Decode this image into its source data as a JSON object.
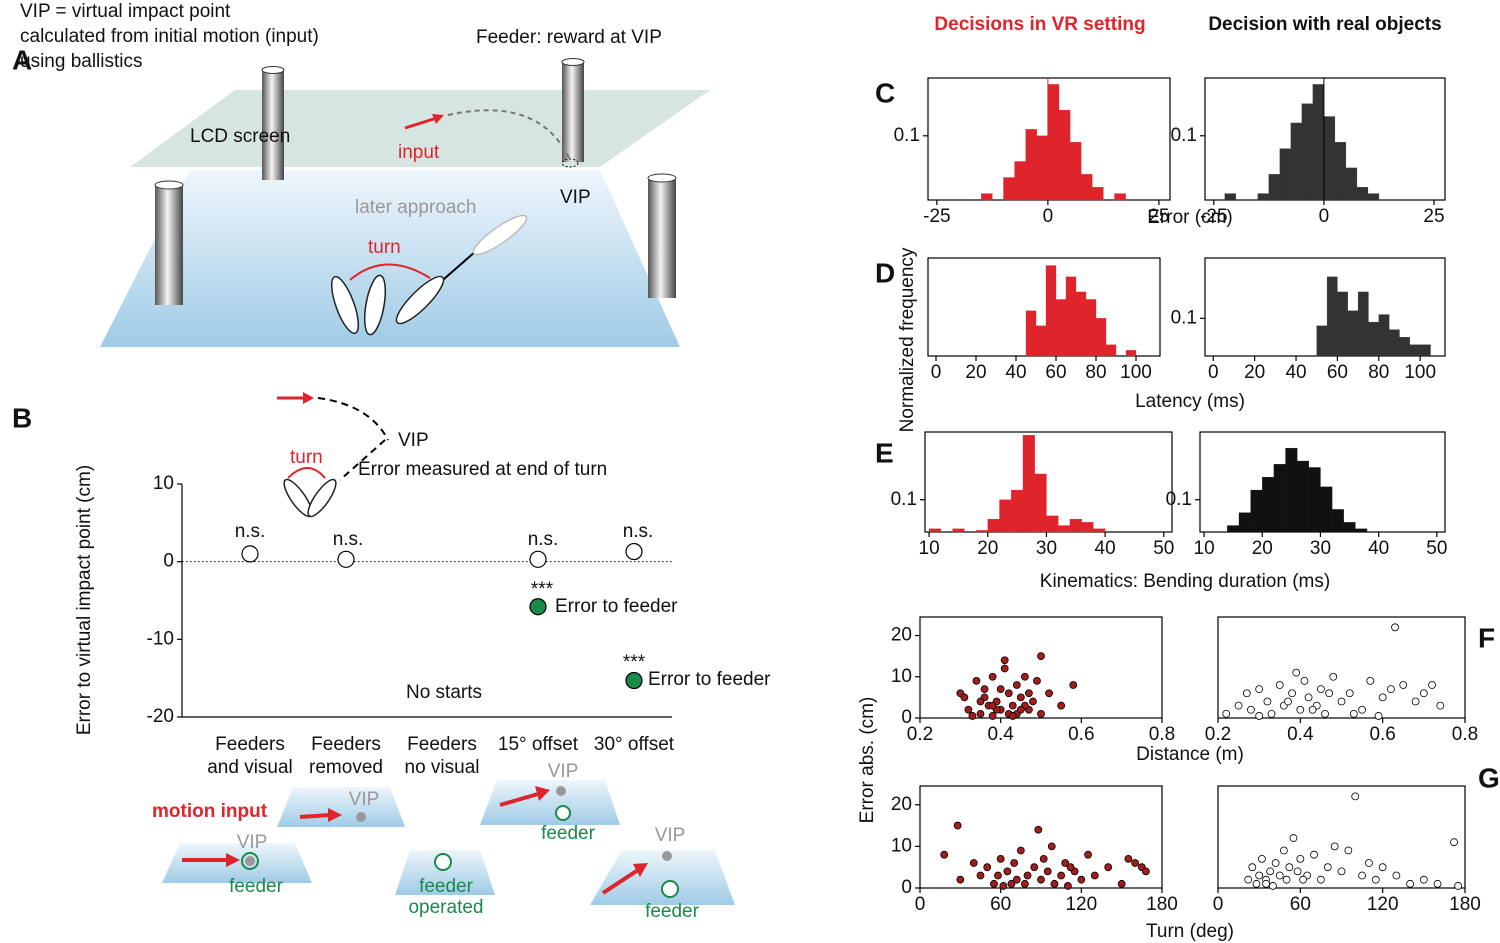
{
  "panel_labels": [
    "A",
    "B",
    "C",
    "D",
    "E",
    "F",
    "G"
  ],
  "column_titles": [
    "Decisions in VR setting",
    "Decision with real objects"
  ],
  "panel_a": {
    "definition": [
      "VIP = virtual impact point",
      "calculated from initial motion (input)",
      "using ballistics"
    ],
    "feeder": "Feeder: reward at VIP",
    "screen": "LCD screen",
    "input": "input",
    "vip": "VIP",
    "approach": "later approach",
    "turn": "turn"
  },
  "panel_b_inset": {
    "vip": "VIP",
    "turn": "turn",
    "error": "Error measured at end of turn"
  },
  "panel_b_schematics": {
    "motion_input": "motion input",
    "items": [
      {
        "vip": "VIP",
        "feeder": [
          "feeder"
        ]
      },
      {
        "vip": "VIP"
      },
      {
        "feeder": [
          "feeder",
          "operated"
        ]
      },
      {
        "vip": "VIP",
        "feeder": [
          "feeder"
        ]
      },
      {
        "vip": "VIP",
        "feeder": [
          "feeder"
        ]
      }
    ]
  },
  "chart_data": [
    {
      "type": "dot",
      "ylabel": "Error to virtual impact point (cm)",
      "categories": [
        [
          "Feeders",
          "and visual"
        ],
        [
          "Feeders",
          "removed"
        ],
        [
          "Feeders",
          "no visual"
        ],
        [
          "15° offset"
        ],
        [
          "30° offset"
        ]
      ],
      "series": [
        {
          "name": "VIP",
          "color": "#ffffff",
          "values": [
            1,
            0.3,
            null,
            0.3,
            1.3
          ]
        },
        {
          "name": "feeder",
          "color": "#1a8a4a",
          "values": [
            null,
            null,
            null,
            -5.8,
            -15.3
          ]
        }
      ],
      "annotations": [
        "n.s.",
        "n.s.",
        "n.s.",
        "n.s.",
        "***",
        "Error to feeder",
        "***",
        "Error to feeder",
        "No starts"
      ],
      "ylim": [
        -20,
        10
      ],
      "yticks": [
        -20,
        -10,
        0,
        10
      ]
    },
    {
      "type": "histogram",
      "color": "#e0242c",
      "xlabel": "Error (cm)",
      "bins": [
        -15,
        -12.5,
        -10,
        -7.5,
        -5,
        -2.5,
        0,
        2.5,
        5,
        7.5,
        10,
        12.5,
        15,
        17.5
      ],
      "counts": [
        0.01,
        0,
        0.035,
        0.06,
        0.11,
        0.1,
        0.18,
        0.14,
        0.09,
        0.04,
        0.02,
        0,
        0.01
      ],
      "vline": 0,
      "xlim": [
        -27,
        27.5
      ],
      "ylim": [
        0,
        0.19
      ],
      "xticks": [
        -25,
        0,
        25
      ],
      "yticks": [
        0.1
      ]
    },
    {
      "type": "histogram",
      "color": "#333333",
      "bins": [
        -22.5,
        -20,
        -17.5,
        -15,
        -12.5,
        -10,
        -7.5,
        -5,
        -2.5,
        0,
        2.5,
        5,
        7.5,
        10,
        12.5
      ],
      "counts": [
        0.01,
        0,
        0,
        0.01,
        0.04,
        0.08,
        0.12,
        0.15,
        0.18,
        0.13,
        0.09,
        0.05,
        0.02,
        0.01
      ],
      "vline": 0,
      "xlim": [
        -27,
        27.5
      ],
      "ylim": [
        0,
        0.19
      ],
      "xticks": [
        -25,
        0,
        25
      ],
      "yticks": [
        0.1
      ]
    },
    {
      "type": "histogram",
      "color": "#e0242c",
      "xlabel": "Latency (ms)",
      "ylabel": "Normalized frequency",
      "bins": [
        45,
        50,
        55,
        60,
        65,
        70,
        75,
        80,
        85,
        90,
        95,
        100
      ],
      "counts": [
        0.12,
        0.08,
        0.24,
        0.15,
        0.21,
        0.17,
        0.15,
        0.1,
        0.03,
        0,
        0.015
      ],
      "xlim": [
        -4,
        112
      ],
      "ylim": [
        0,
        0.26
      ],
      "xticks": [
        0,
        20,
        40,
        60,
        80,
        100
      ],
      "yticks": []
    },
    {
      "type": "histogram",
      "color": "#333333",
      "bins": [
        50,
        55,
        60,
        65,
        70,
        75,
        80,
        85,
        90,
        95,
        100,
        105
      ],
      "counts": [
        0.08,
        0.21,
        0.17,
        0.12,
        0.17,
        0.09,
        0.11,
        0.07,
        0.05,
        0.03,
        0.03
      ],
      "xlim": [
        -4,
        112
      ],
      "ylim": [
        0,
        0.26
      ],
      "xticks": [
        0,
        20,
        40,
        60,
        80,
        100
      ],
      "yticks": [
        0.1
      ]
    },
    {
      "type": "histogram",
      "color": "#e0242c",
      "xlabel": "Kinematics: Bending duration (ms)",
      "bins": [
        10,
        12,
        14,
        16,
        18,
        20,
        22,
        24,
        26,
        28,
        30,
        32,
        34,
        36,
        38,
        40
      ],
      "counts": [
        0.01,
        0,
        0.01,
        0,
        0.005,
        0.04,
        0.1,
        0.13,
        0.3,
        0.18,
        0.05,
        0.02,
        0.04,
        0.03,
        0.01
      ],
      "xlim": [
        9.3,
        51.4
      ],
      "ylim": [
        0,
        0.31
      ],
      "xticks": [
        10,
        20,
        30,
        40,
        50
      ],
      "yticks": [
        0.1
      ]
    },
    {
      "type": "histogram",
      "color": "#111111",
      "bins": [
        14,
        16,
        18,
        20,
        22,
        24,
        26,
        28,
        30,
        32,
        34,
        36,
        38
      ],
      "counts": [
        0.02,
        0.06,
        0.13,
        0.17,
        0.21,
        0.26,
        0.22,
        0.2,
        0.14,
        0.07,
        0.03,
        0.01
      ],
      "xlim": [
        9.3,
        51.4
      ],
      "ylim": [
        0,
        0.31
      ],
      "xticks": [
        10,
        20,
        30,
        40,
        50
      ],
      "yticks": [
        0.1
      ]
    },
    {
      "type": "scatter",
      "color": "#a31d1d",
      "xlabel": "Distance (m)",
      "ylabel": "Error abs. (cm)",
      "x": [
        0.3,
        0.32,
        0.34,
        0.35,
        0.36,
        0.37,
        0.38,
        0.38,
        0.39,
        0.4,
        0.4,
        0.41,
        0.42,
        0.42,
        0.43,
        0.44,
        0.45,
        0.46,
        0.47,
        0.48,
        0.5,
        0.5,
        0.52,
        0.55,
        0.58,
        0.33,
        0.36,
        0.39,
        0.41,
        0.44,
        0.46,
        0.49,
        0.31,
        0.35,
        0.43,
        0.47,
        0.38,
        0.45
      ],
      "values": [
        6,
        2,
        9,
        1,
        5,
        3,
        10,
        0.5,
        4,
        7,
        2,
        14,
        6,
        1,
        3,
        8,
        5,
        10,
        2,
        4,
        15,
        1,
        6,
        3,
        8,
        0.5,
        7,
        2,
        12,
        1,
        3,
        9,
        5,
        4,
        0.5,
        6,
        3,
        2
      ],
      "xlim": [
        0.2,
        0.8
      ],
      "ylim": [
        0,
        24.5
      ],
      "xticks": [
        0.2,
        0.4,
        0.6,
        0.8
      ],
      "yticks": [
        0,
        10,
        20
      ]
    },
    {
      "type": "scatter",
      "color": "#ffffff",
      "x": [
        0.22,
        0.25,
        0.27,
        0.28,
        0.3,
        0.32,
        0.33,
        0.35,
        0.36,
        0.38,
        0.39,
        0.4,
        0.41,
        0.42,
        0.44,
        0.45,
        0.46,
        0.48,
        0.5,
        0.52,
        0.55,
        0.57,
        0.6,
        0.62,
        0.63,
        0.65,
        0.68,
        0.7,
        0.72,
        0.74,
        0.3,
        0.37,
        0.43,
        0.47,
        0.53,
        0.59
      ],
      "values": [
        1,
        3,
        6,
        2,
        7,
        4,
        1,
        8,
        3,
        6,
        11,
        2,
        9,
        5,
        3,
        7,
        1,
        10,
        4,
        6,
        2,
        9,
        5,
        7,
        22,
        8,
        4,
        6,
        8,
        3,
        0.5,
        4,
        2,
        6,
        1,
        0.5
      ],
      "xlim": [
        0.2,
        0.8
      ],
      "ylim": [
        0,
        24.5
      ],
      "xticks": [
        0.2,
        0.4,
        0.6,
        0.8
      ],
      "yticks": []
    },
    {
      "type": "scatter",
      "color": "#a31d1d",
      "xlabel": "Turn (deg)",
      "x": [
        18,
        28,
        30,
        40,
        50,
        55,
        58,
        60,
        62,
        65,
        70,
        72,
        75,
        78,
        80,
        85,
        88,
        90,
        92,
        95,
        98,
        100,
        105,
        108,
        110,
        115,
        120,
        125,
        130,
        140,
        150,
        155,
        160,
        165,
        168,
        45,
        68,
        112
      ],
      "values": [
        8,
        15,
        2,
        6,
        5,
        1,
        3,
        7,
        0.5,
        4,
        6,
        2,
        9,
        1,
        3,
        5,
        14,
        2,
        7,
        4,
        10,
        1,
        3,
        6,
        0.5,
        4,
        2,
        8,
        3,
        5,
        1,
        7,
        6,
        5,
        4,
        3,
        1,
        5
      ],
      "xlim": [
        0,
        180
      ],
      "ylim": [
        0,
        24.5
      ],
      "xticks": [
        0,
        60,
        120,
        180
      ],
      "yticks": [
        0,
        10,
        20
      ]
    },
    {
      "type": "scatter",
      "color": "#ffffff",
      "x": [
        22,
        25,
        28,
        30,
        32,
        35,
        38,
        40,
        42,
        45,
        48,
        50,
        52,
        55,
        58,
        60,
        65,
        70,
        75,
        80,
        85,
        90,
        95,
        100,
        105,
        110,
        115,
        120,
        130,
        140,
        150,
        160,
        172,
        175,
        35,
        62
      ],
      "values": [
        2,
        5,
        1,
        3,
        7,
        2,
        4,
        0.5,
        6,
        3,
        9,
        2,
        5,
        12,
        4,
        7,
        3,
        8,
        2,
        5,
        10,
        4,
        9,
        22,
        3,
        6,
        2,
        5,
        3,
        1,
        2,
        1,
        11,
        0.5,
        1,
        2
      ],
      "xlim": [
        0,
        180
      ],
      "ylim": [
        0,
        24.5
      ],
      "xticks": [
        0,
        60,
        120,
        180
      ],
      "yticks": []
    }
  ]
}
